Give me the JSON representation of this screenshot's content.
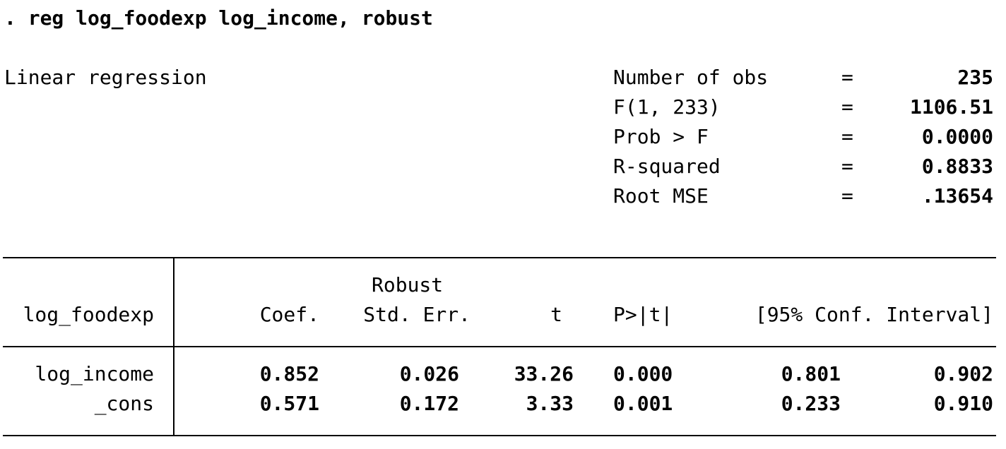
{
  "command": ". reg log_foodexp log_income, robust",
  "model_title": "Linear regression",
  "stats": [
    {
      "label": "Number of obs",
      "eq": "=",
      "value": "235"
    },
    {
      "label": "F(1, 233)",
      "eq": "=",
      "value": "1106.51"
    },
    {
      "label": "Prob > F",
      "eq": "=",
      "value": "0.0000"
    },
    {
      "label": "R-squared",
      "eq": "=",
      "value": "0.8833"
    },
    {
      "label": "Root MSE",
      "eq": "=",
      "value": ".13654"
    }
  ],
  "table": {
    "depvar": "log_foodexp",
    "header_top": {
      "robust": "Robust"
    },
    "headers": {
      "coef": "Coef.",
      "se": "Std. Err.",
      "t": "t",
      "p": "P>|t|",
      "ci": "[95% Conf. Interval]"
    },
    "rows": [
      {
        "name": "log_income",
        "coef": "0.852",
        "se": "0.026",
        "t": "33.26",
        "p": "0.000",
        "lo": "0.801",
        "hi": "0.902"
      },
      {
        "name": "_cons",
        "coef": "0.571",
        "se": "0.172",
        "t": "3.33",
        "p": "0.001",
        "lo": "0.233",
        "hi": "0.910"
      }
    ]
  }
}
